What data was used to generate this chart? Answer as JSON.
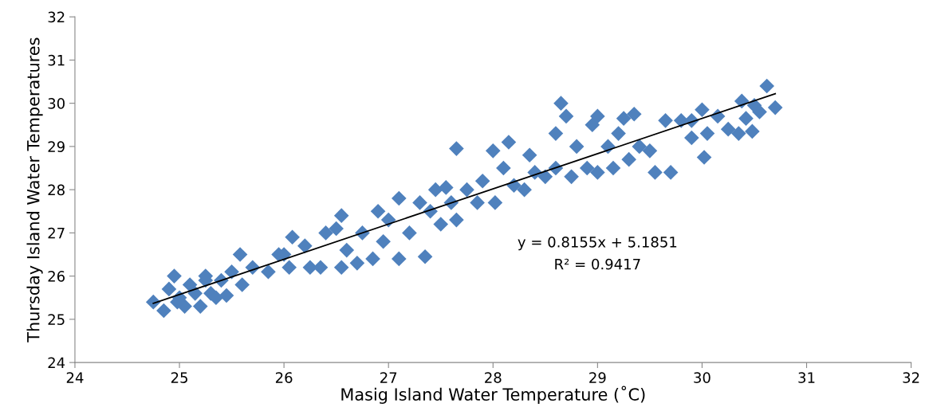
{
  "chart_data": {
    "type": "scatter",
    "xlabel": "Masig Island Water Temperature (˚C)",
    "ylabel": "Thursday Island Water Temperatures",
    "marker": "diamond",
    "grid": false,
    "legend": false,
    "xlim": [
      24,
      32
    ],
    "xticks": [
      24,
      25,
      26,
      27,
      28,
      29,
      30,
      31,
      32
    ],
    "ylim": [
      24,
      32
    ],
    "yticks": [
      24,
      25,
      26,
      27,
      28,
      29,
      30,
      31,
      32
    ],
    "annotations": [
      "y = 0.8155x + 5.1851",
      "R² = 0.9417"
    ],
    "series": [
      {
        "color": "#4f81bd",
        "x": [
          24.75,
          24.85,
          24.9,
          24.95,
          25.0,
          25.05,
          25.1,
          25.15,
          25.2,
          25.25,
          25.3,
          25.35,
          25.4,
          25.45,
          25.5,
          25.58,
          25.6,
          25.7,
          25.85,
          25.95,
          26.05,
          26.08,
          26.2,
          26.25,
          26.35,
          26.4,
          26.5,
          26.55,
          26.55,
          26.6,
          26.7,
          26.75,
          26.85,
          26.9,
          26.95,
          27.0,
          27.1,
          27.1,
          27.2,
          27.3,
          27.35,
          27.4,
          27.45,
          27.5,
          27.6,
          27.65,
          27.65,
          27.75,
          27.85,
          27.9,
          28.0,
          28.02,
          28.1,
          28.15,
          28.2,
          28.3,
          28.35,
          28.5,
          28.6,
          28.65,
          28.6,
          28.7,
          28.75,
          28.8,
          28.9,
          28.95,
          29.0,
          29.0,
          29.1,
          29.15,
          29.2,
          29.25,
          29.3,
          29.35,
          29.4,
          29.5,
          29.55,
          29.65,
          29.7,
          29.8,
          29.9,
          30.0,
          30.02,
          30.05,
          30.15,
          30.25,
          30.35,
          30.38,
          30.42,
          30.48,
          30.5,
          30.55,
          30.62,
          30.7,
          29.9,
          28.4,
          27.55,
          26.0,
          25.25,
          24.98
        ],
        "values": [
          25.4,
          25.2,
          25.7,
          26.0,
          25.5,
          25.3,
          25.8,
          25.6,
          25.3,
          25.9,
          25.6,
          25.5,
          25.9,
          25.55,
          26.1,
          26.5,
          25.8,
          26.2,
          26.1,
          26.5,
          26.2,
          26.9,
          26.7,
          26.2,
          26.2,
          27.0,
          27.1,
          27.4,
          26.2,
          26.6,
          26.3,
          27.0,
          26.4,
          27.5,
          26.8,
          27.3,
          27.8,
          26.4,
          27.0,
          27.7,
          26.45,
          27.5,
          28.0,
          27.2,
          27.7,
          28.95,
          27.3,
          28.0,
          27.7,
          28.2,
          28.9,
          27.7,
          28.5,
          29.1,
          28.1,
          28.0,
          28.8,
          28.3,
          28.5,
          30.0,
          29.3,
          29.7,
          28.3,
          29.0,
          28.5,
          29.5,
          29.7,
          28.4,
          29.0,
          28.5,
          29.3,
          29.65,
          28.7,
          29.75,
          29.0,
          28.9,
          28.4,
          29.6,
          28.4,
          29.6,
          29.2,
          29.85,
          28.75,
          29.3,
          29.7,
          29.4,
          29.3,
          30.05,
          29.65,
          29.35,
          29.95,
          29.8,
          30.4,
          29.9,
          29.6,
          28.4,
          28.05,
          26.5,
          26.0,
          25.4
        ]
      },
      {
        "type": "line",
        "color": "#000000",
        "marker": "none",
        "x": [
          24.75,
          30.7
        ],
        "values": [
          25.37,
          30.22
        ]
      }
    ]
  }
}
